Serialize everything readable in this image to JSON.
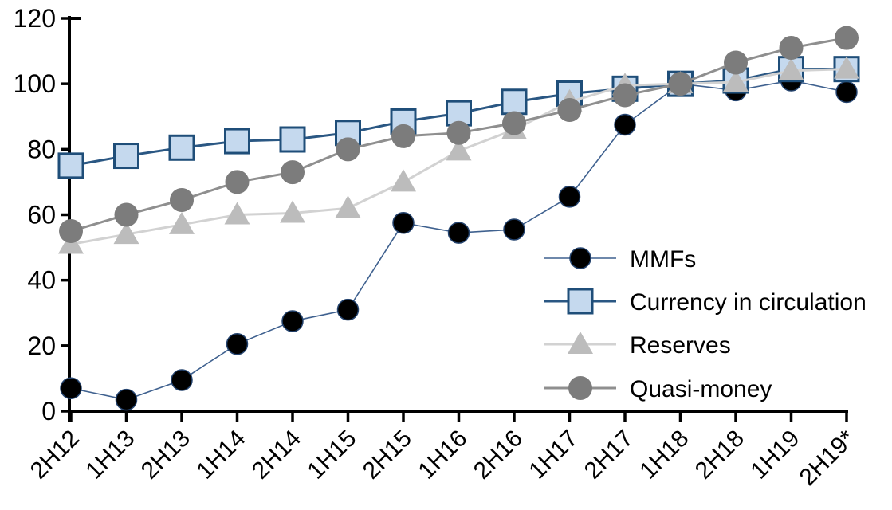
{
  "chart_data": {
    "type": "line",
    "title": "",
    "xlabel": "",
    "ylabel": "",
    "categories": [
      "2H12",
      "1H13",
      "2H13",
      "1H14",
      "2H14",
      "1H15",
      "2H15",
      "1H16",
      "2H16",
      "1H17",
      "2H17",
      "1H18",
      "2H18",
      "1H19",
      "2H19*"
    ],
    "series": [
      {
        "name": "MMFs",
        "marker": "circle",
        "values": [
          7,
          3.5,
          9.5,
          20.5,
          27.5,
          31,
          57.5,
          54.5,
          55.5,
          65.5,
          87.5,
          100,
          98,
          101,
          97.5
        ],
        "line_color": "#3f618f",
        "line_width": 1.6,
        "marker_fill": "#000000",
        "marker_stroke": "#24436e",
        "marker_stroke_width": 1.5,
        "marker_size": 28
      },
      {
        "name": "Currency in circulation",
        "marker": "square",
        "values": [
          75,
          78,
          80.5,
          82.5,
          83,
          85,
          88.5,
          91,
          94.5,
          97,
          98.5,
          100,
          101,
          104.5,
          104.5
        ],
        "line_color": "#2a5783",
        "line_width": 3,
        "marker_fill": "#c5d9ee",
        "marker_stroke": "#1f4e79",
        "marker_stroke_width": 3,
        "marker_size": 30
      },
      {
        "name": "Reserves",
        "marker": "triangle",
        "values": [
          51,
          54,
          57,
          60,
          60.5,
          62,
          70,
          79.5,
          86,
          94.5,
          99.5,
          100,
          100.5,
          104,
          104.5
        ],
        "line_color": "#d2d2d2",
        "line_width": 3,
        "marker_fill": "#bcbcbc",
        "marker_stroke": "none",
        "marker_stroke_width": 0,
        "marker_size": 30
      },
      {
        "name": "Quasi-money",
        "marker": "circle",
        "values": [
          55,
          60,
          64.5,
          70,
          73,
          80,
          84,
          85,
          88,
          92,
          96.5,
          100,
          106.5,
          111,
          114
        ],
        "line_color": "#8f8f8f",
        "line_width": 3,
        "marker_fill": "#7c7c7c",
        "marker_stroke": "none",
        "marker_stroke_width": 0,
        "marker_size": 30
      }
    ],
    "ylim": [
      0,
      120
    ],
    "yticks": [
      0,
      20,
      40,
      60,
      80,
      100,
      120
    ],
    "grid": false,
    "legend_position": "inside-right",
    "legend_labels": [
      "MMFs",
      "Currency in circulation",
      "Reserves",
      "Quasi-money"
    ],
    "axis_color": "#000000"
  }
}
